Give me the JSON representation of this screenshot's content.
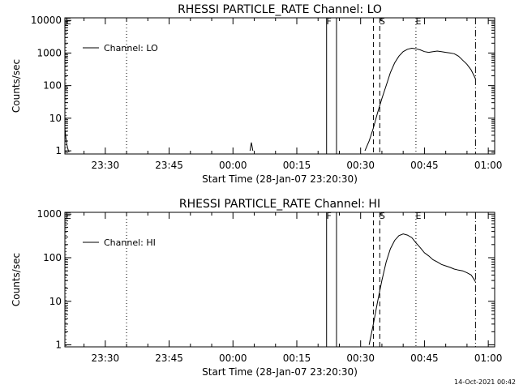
{
  "footer": {
    "timestamp": "14-Oct-2021 00:42"
  },
  "chart_data": [
    {
      "type": "line",
      "title": "RHESSI PARTICLE_RATE Channel: LO",
      "xlabel": "Start Time (28-Jan-07 23:20:30)",
      "ylabel": "Counts/sec",
      "yscale": "log",
      "xlim": [
        "23:20:30",
        "01:01:30"
      ],
      "ylim": [
        0.8,
        12000
      ],
      "x_ticks": [
        "23:30",
        "23:45",
        "00:00",
        "00:15",
        "00:30",
        "00:45",
        "01:00"
      ],
      "y_ticks": [
        "1",
        "10",
        "100",
        "1000",
        "10000"
      ],
      "legend": {
        "placement": "top-left",
        "entries": [
          "Channel: LO"
        ]
      },
      "markers": [
        {
          "time": "23:20:45",
          "label": "E",
          "style": "dotted"
        },
        {
          "time": "23:35:00",
          "label": "",
          "style": "dotted"
        },
        {
          "time": "00:22:00",
          "label": "F",
          "style": "solid"
        },
        {
          "time": "00:24:20",
          "label": "",
          "style": "solid"
        },
        {
          "time": "00:33:00",
          "label": "",
          "style": "dashed"
        },
        {
          "time": "00:34:30",
          "label": "S",
          "style": "dashed"
        },
        {
          "time": "00:43:00",
          "label": "E",
          "style": "dotted"
        },
        {
          "time": "00:57:00",
          "label": "",
          "style": "dashdot"
        }
      ],
      "series": [
        {
          "name": "Channel: LO",
          "segments": [
            {
              "x": [
                "23:20:30",
                "23:20:40",
                "23:20:50",
                "23:21:00",
                "23:21:10",
                "23:21:20",
                "23:21:30"
              ],
              "y": [
                5,
                3,
                2,
                1.5,
                1.2,
                1.0,
                0.9
              ]
            },
            {
              "x": [
                "00:04:00",
                "00:04:20",
                "00:04:40"
              ],
              "y": [
                1.0,
                1.8,
                1.0
              ]
            },
            {
              "x": [
                "00:31:00",
                "00:32:00",
                "00:33:00",
                "00:34:00",
                "00:35:00",
                "00:36:00",
                "00:37:00",
                "00:38:00",
                "00:39:00",
                "00:40:00",
                "00:41:00",
                "00:42:00",
                "00:43:00",
                "00:44:00",
                "00:45:00",
                "00:46:00",
                "00:47:00",
                "00:48:00",
                "00:49:00",
                "00:50:00",
                "00:51:00",
                "00:52:00",
                "00:53:00",
                "00:54:00",
                "00:55:00",
                "00:56:00",
                "00:57:00"
              ],
              "y": [
                1,
                2,
                5,
                15,
                40,
                100,
                250,
                500,
                800,
                1100,
                1300,
                1400,
                1350,
                1250,
                1100,
                1050,
                1100,
                1150,
                1100,
                1050,
                1000,
                950,
                800,
                600,
                450,
                300,
                160
              ]
            }
          ]
        }
      ]
    },
    {
      "type": "line",
      "title": "RHESSI PARTICLE_RATE Channel: HI",
      "xlabel": "Start Time (28-Jan-07 23:20:30)",
      "ylabel": "Counts/sec",
      "yscale": "log",
      "xlim": [
        "23:20:30",
        "01:01:30"
      ],
      "ylim": [
        0.9,
        1100
      ],
      "x_ticks": [
        "23:30",
        "23:45",
        "00:00",
        "00:15",
        "00:30",
        "00:45",
        "01:00"
      ],
      "y_ticks": [
        "1",
        "10",
        "100",
        "1000"
      ],
      "legend": {
        "placement": "top-left",
        "entries": [
          "Channel: HI"
        ]
      },
      "markers": [
        {
          "time": "23:20:45",
          "label": "E",
          "style": "dotted"
        },
        {
          "time": "23:35:00",
          "label": "",
          "style": "dotted"
        },
        {
          "time": "00:22:00",
          "label": "F",
          "style": "solid"
        },
        {
          "time": "00:24:20",
          "label": "",
          "style": "solid"
        },
        {
          "time": "00:33:00",
          "label": "",
          "style": "dashed"
        },
        {
          "time": "00:34:30",
          "label": "S",
          "style": "dashed"
        },
        {
          "time": "00:43:00",
          "label": "E",
          "style": "dotted"
        },
        {
          "time": "00:57:00",
          "label": "",
          "style": "dashdot"
        }
      ],
      "series": [
        {
          "name": "Channel: HI",
          "segments": [
            {
              "x": [
                "00:32:00",
                "00:33:00",
                "00:34:00",
                "00:35:00",
                "00:36:00",
                "00:37:00",
                "00:38:00",
                "00:39:00",
                "00:40:00",
                "00:41:00",
                "00:42:00",
                "00:43:00",
                "00:44:00",
                "00:45:00",
                "00:46:00",
                "00:47:00",
                "00:48:00",
                "00:49:00",
                "00:50:00",
                "00:51:00",
                "00:52:00",
                "00:53:00",
                "00:54:00",
                "00:55:00",
                "00:56:00",
                "00:57:00"
              ],
              "y": [
                1,
                3,
                10,
                30,
                80,
                160,
                250,
                320,
                350,
                330,
                290,
                220,
                170,
                130,
                110,
                90,
                80,
                70,
                65,
                60,
                55,
                52,
                50,
                45,
                40,
                28
              ]
            }
          ]
        }
      ]
    }
  ]
}
